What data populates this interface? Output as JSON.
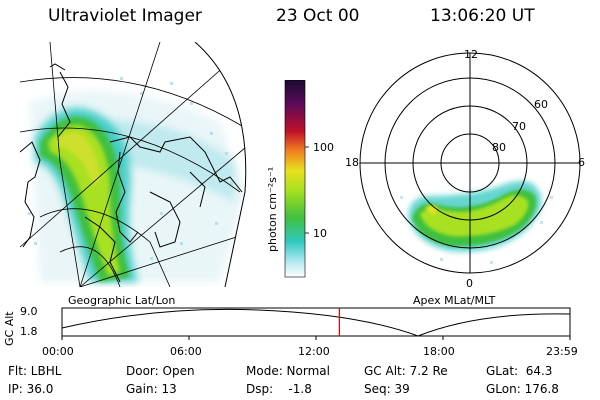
{
  "header": {
    "instrument": "Ultraviolet Imager",
    "date": "23 Oct 00",
    "time": "13:06:20 UT"
  },
  "left_panel": {
    "label": "Geographic Lat/Lon"
  },
  "right_panel": {
    "label": "Apex MLat/MLT",
    "mlt_labels": {
      "top": "12",
      "left": "18",
      "right": "6",
      "bottom": "0"
    },
    "lat_rings": [
      "60",
      "70",
      "80"
    ]
  },
  "colorbar": {
    "unit_label": "photon cm⁻²s⁻¹",
    "ticks": [
      "100",
      "10"
    ],
    "colors": [
      "#2a0a3a",
      "#6a0a5a",
      "#a0102a",
      "#e0302a",
      "#f09020",
      "#e8e020",
      "#a8e020",
      "#40c040",
      "#30c8c0",
      "#b0e8f0",
      "#ffffff"
    ]
  },
  "timeline": {
    "y_label": "GC Alt",
    "y_ticks": [
      "9.0",
      "1.8"
    ],
    "x_ticks": [
      "00:00",
      "06:00",
      "12:00",
      "18:00",
      "23:59"
    ],
    "current_time_fraction": 0.546,
    "marker_color": "#e00000"
  },
  "status": {
    "filter": "Flt: LBHL",
    "ip": "IP: 36.0",
    "door": "Door: Open",
    "gain": "Gain: 13",
    "mode": "Mode: Normal",
    "dsp": "Dsp:    -1.8",
    "gc_alt": "GC Alt: 7.2 Re",
    "seq": "Seq: 39",
    "glat": "GLat:  64.3",
    "glon": "GLon: 176.8"
  }
}
